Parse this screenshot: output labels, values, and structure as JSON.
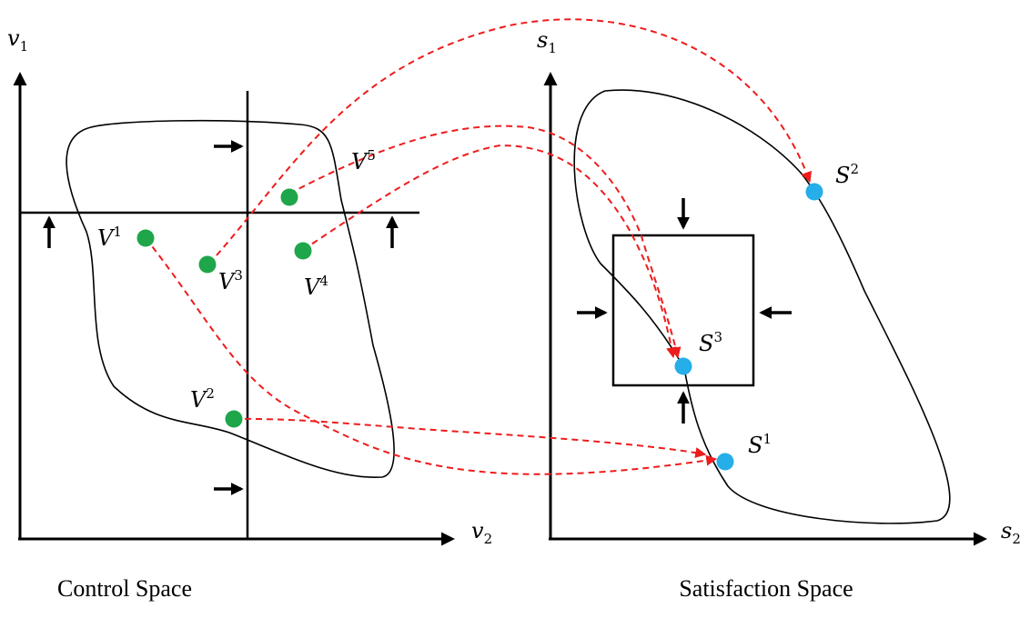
{
  "colors": {
    "control_point": "#1fa64a",
    "satisfaction_point": "#25aee8",
    "mapping_arrow": "#ee1c1c",
    "ink": "#000000"
  },
  "control_space": {
    "caption": "Control Space",
    "axis_y": {
      "base": "v",
      "sub": "1"
    },
    "axis_x": {
      "base": "v",
      "sub": "2"
    },
    "points": [
      {
        "base": "V",
        "sup": "1"
      },
      {
        "base": "V",
        "sup": "2"
      },
      {
        "base": "V",
        "sup": "3"
      },
      {
        "base": "V",
        "sup": "4"
      },
      {
        "base": "V",
        "sup": "5"
      }
    ]
  },
  "satisfaction_space": {
    "caption": "Satisfaction Space",
    "axis_y": {
      "base": "s",
      "sub": "1"
    },
    "axis_x": {
      "base": "s",
      "sub": "2"
    },
    "points": [
      {
        "base": "S",
        "sup": "1"
      },
      {
        "base": "S",
        "sup": "2"
      },
      {
        "base": "S",
        "sup": "3"
      }
    ]
  },
  "mappings": [
    {
      "from": "V1",
      "to": "S1"
    },
    {
      "from": "V2",
      "to": "S1"
    },
    {
      "from": "V3",
      "to": "S2"
    },
    {
      "from": "V4",
      "to": "S3"
    },
    {
      "from": "V5",
      "to": "S3"
    }
  ]
}
